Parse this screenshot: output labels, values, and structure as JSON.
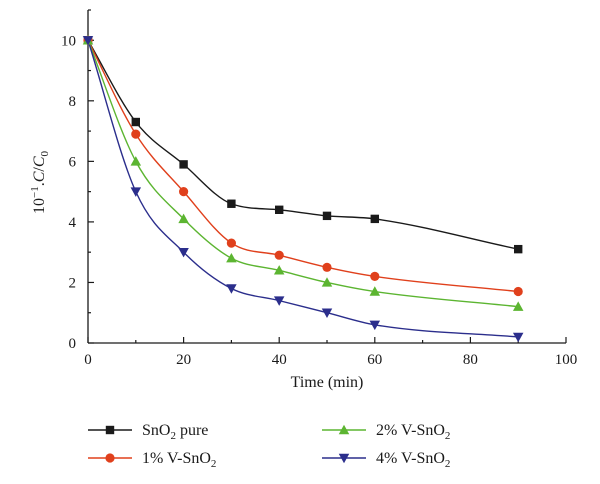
{
  "chart_data": {
    "type": "line",
    "xlabel": "Time (min)",
    "ylabel_parts": [
      "10",
      "−1",
      ".",
      "C",
      "/",
      "C",
      "0"
    ],
    "xlim": [
      0,
      100
    ],
    "ylim": [
      0,
      11
    ],
    "xticks": [
      0,
      20,
      40,
      60,
      80,
      100
    ],
    "yticks": [
      0,
      2,
      4,
      6,
      8,
      10
    ],
    "grid": false,
    "legend_position": "bottom",
    "series": [
      {
        "name_parts": [
          "SnO",
          "2",
          " pure"
        ],
        "marker": "square",
        "color": "#1a1a1a",
        "x": [
          0,
          10,
          20,
          30,
          40,
          50,
          60,
          90
        ],
        "y": [
          10.0,
          7.3,
          5.9,
          4.6,
          4.4,
          4.2,
          4.1,
          3.1
        ]
      },
      {
        "name_parts": [
          "1% V-SnO",
          "2",
          ""
        ],
        "marker": "circle",
        "color": "#e0401c",
        "x": [
          0,
          10,
          20,
          30,
          40,
          50,
          60,
          90
        ],
        "y": [
          10.0,
          6.9,
          5.0,
          3.3,
          2.9,
          2.5,
          2.2,
          1.7
        ]
      },
      {
        "name_parts": [
          "2% V-SnO",
          "2",
          ""
        ],
        "marker": "triangle-up",
        "color": "#5cb531",
        "x": [
          0,
          10,
          20,
          30,
          40,
          50,
          60,
          90
        ],
        "y": [
          10.0,
          6.0,
          4.1,
          2.8,
          2.4,
          2.0,
          1.7,
          1.2
        ]
      },
      {
        "name_parts": [
          "4% V-SnO",
          "2",
          ""
        ],
        "marker": "triangle-down",
        "color": "#2b2e8c",
        "x": [
          0,
          10,
          20,
          30,
          40,
          50,
          60,
          90
        ],
        "y": [
          10.0,
          5.0,
          3.0,
          1.8,
          1.4,
          1.0,
          0.6,
          0.2
        ]
      }
    ]
  }
}
